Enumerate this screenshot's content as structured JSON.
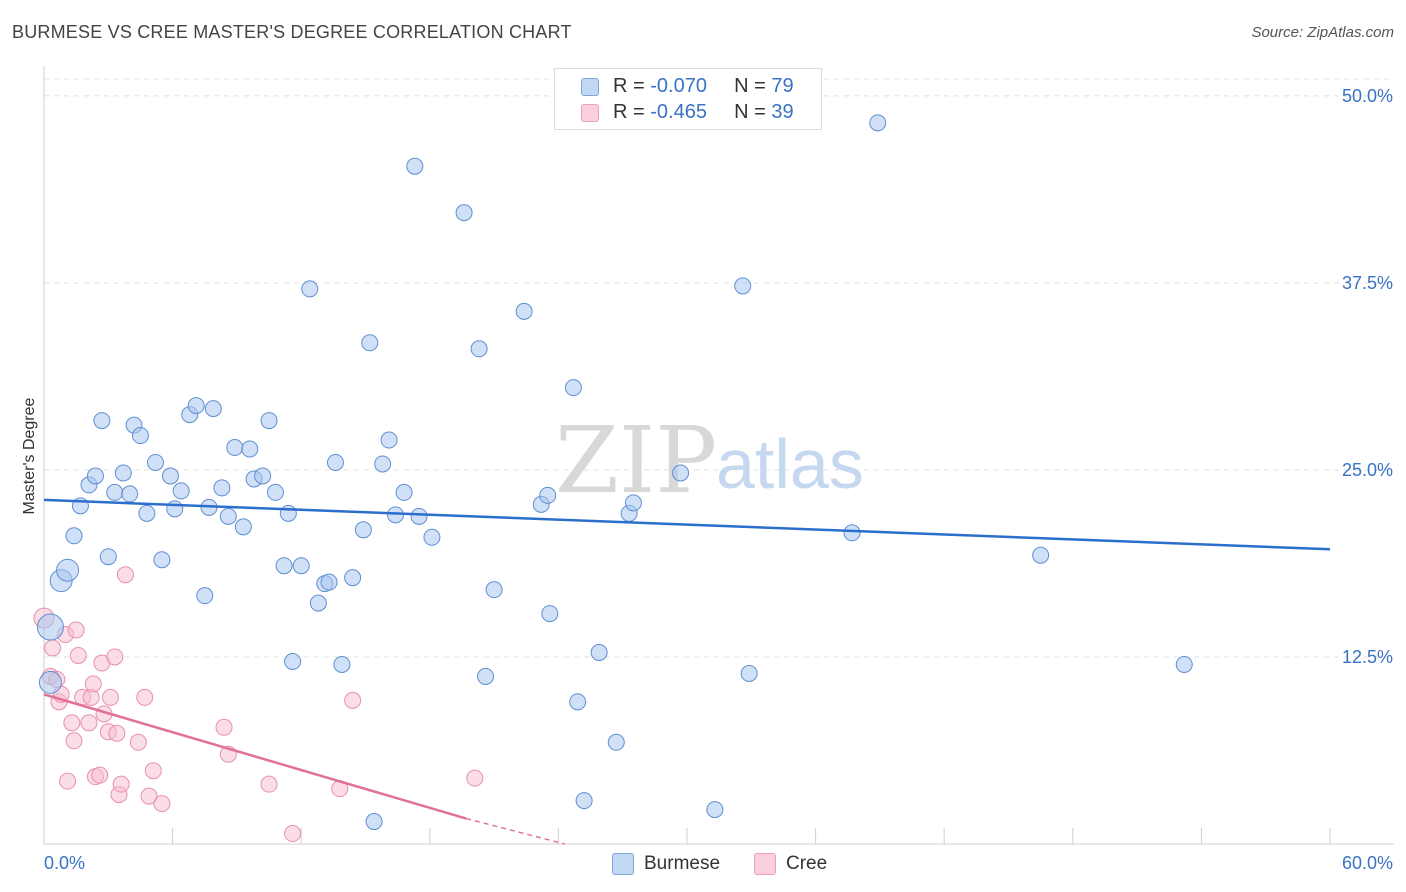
{
  "title": "BURMESE VS CREE MASTER'S DEGREE CORRELATION CHART",
  "source": "Source: ZipAtlas.com",
  "watermark": {
    "zip": "ZIP",
    "atlas": "atlas"
  },
  "legend": {
    "burmese": {
      "r_label": "R = ",
      "r_value": "-0.070",
      "n_label": "N = ",
      "n_value": "79"
    },
    "cree": {
      "r_label": "R = ",
      "r_value": "-0.465",
      "n_label": "N = ",
      "n_value": "39"
    }
  },
  "colors": {
    "burmese": "#a9c6ef",
    "burmese_line": "#2b6fcc",
    "cree": "#f7bccd",
    "cree_line": "#e07098",
    "tick": "#3a72c4"
  },
  "chart_data": {
    "type": "scatter",
    "ylabel": "Master's Degree",
    "xlim": [
      0,
      60
    ],
    "ylim": [
      0,
      52
    ],
    "x_tick_labels": [
      {
        "value": 0,
        "label": "0.0%"
      },
      {
        "value": 60,
        "label": "60.0%"
      }
    ],
    "y_ticks": [
      {
        "value": 12.5,
        "label": "12.5%"
      },
      {
        "value": 25,
        "label": "25.0%"
      },
      {
        "value": 37.5,
        "label": "37.5%"
      },
      {
        "value": 50,
        "label": "50.0%"
      }
    ],
    "grid": "horizontal dashed",
    "legend": "top-center and bottom-center",
    "series": [
      {
        "name": "Burmese",
        "trend": {
          "x": [
            0,
            60
          ],
          "y": [
            23.0,
            19.7
          ]
        },
        "points": [
          [
            0.3,
            14.5
          ],
          [
            0.8,
            17.6
          ],
          [
            1.1,
            18.3
          ],
          [
            1.4,
            20.6
          ],
          [
            1.7,
            22.6
          ],
          [
            2.1,
            24.0
          ],
          [
            2.4,
            24.6
          ],
          [
            2.7,
            28.3
          ],
          [
            3.0,
            19.2
          ],
          [
            3.3,
            23.5
          ],
          [
            3.7,
            24.8
          ],
          [
            4.0,
            23.4
          ],
          [
            4.2,
            28.0
          ],
          [
            4.5,
            27.3
          ],
          [
            4.8,
            22.1
          ],
          [
            5.2,
            25.5
          ],
          [
            5.5,
            19.0
          ],
          [
            5.9,
            24.6
          ],
          [
            6.1,
            22.4
          ],
          [
            6.4,
            23.6
          ],
          [
            6.8,
            28.7
          ],
          [
            7.1,
            29.3
          ],
          [
            7.5,
            16.6
          ],
          [
            7.7,
            22.5
          ],
          [
            7.9,
            29.1
          ],
          [
            8.3,
            23.8
          ],
          [
            8.6,
            21.9
          ],
          [
            8.9,
            26.5
          ],
          [
            9.3,
            21.2
          ],
          [
            9.6,
            26.4
          ],
          [
            9.8,
            24.4
          ],
          [
            10.2,
            24.6
          ],
          [
            10.5,
            28.3
          ],
          [
            10.8,
            23.5
          ],
          [
            11.2,
            18.6
          ],
          [
            11.4,
            22.1
          ],
          [
            11.6,
            12.2
          ],
          [
            12.0,
            18.6
          ],
          [
            12.4,
            37.1
          ],
          [
            12.8,
            16.1
          ],
          [
            13.1,
            17.4
          ],
          [
            13.3,
            17.5
          ],
          [
            13.6,
            25.5
          ],
          [
            13.9,
            12.0
          ],
          [
            14.4,
            17.8
          ],
          [
            14.9,
            21.0
          ],
          [
            15.2,
            33.5
          ],
          [
            15.8,
            25.4
          ],
          [
            16.1,
            27.0
          ],
          [
            16.4,
            22.0
          ],
          [
            16.8,
            23.5
          ],
          [
            17.3,
            45.3
          ],
          [
            17.5,
            21.9
          ],
          [
            18.1,
            20.5
          ],
          [
            19.6,
            42.2
          ],
          [
            20.3,
            33.1
          ],
          [
            20.6,
            11.2
          ],
          [
            21.0,
            17.0
          ],
          [
            22.4,
            35.6
          ],
          [
            23.2,
            22.7
          ],
          [
            23.5,
            23.3
          ],
          [
            23.6,
            15.4
          ],
          [
            24.7,
            30.5
          ],
          [
            24.9,
            9.5
          ],
          [
            25.2,
            2.9
          ],
          [
            25.9,
            12.8
          ],
          [
            26.7,
            6.8
          ],
          [
            27.3,
            22.1
          ],
          [
            27.5,
            22.8
          ],
          [
            29.7,
            24.8
          ],
          [
            31.3,
            2.3
          ],
          [
            32.6,
            37.3
          ],
          [
            32.9,
            11.4
          ],
          [
            37.7,
            20.8
          ],
          [
            38.9,
            48.2
          ],
          [
            46.5,
            19.3
          ],
          [
            53.2,
            12.0
          ],
          [
            15.4,
            1.5
          ],
          [
            0.3,
            10.8
          ]
        ]
      },
      {
        "name": "Cree",
        "trend": {
          "x": [
            0,
            19.7
          ],
          "y": [
            10.0,
            1.7
          ]
        },
        "trend_dashed": {
          "x": [
            19.7,
            24.3
          ],
          "y": [
            1.7,
            0
          ]
        },
        "points": [
          [
            0.0,
            15.1
          ],
          [
            0.3,
            11.2
          ],
          [
            0.4,
            13.1
          ],
          [
            0.6,
            11.0
          ],
          [
            0.7,
            9.5
          ],
          [
            0.8,
            10.0
          ],
          [
            1.0,
            14.0
          ],
          [
            1.1,
            4.2
          ],
          [
            1.3,
            8.1
          ],
          [
            1.4,
            6.9
          ],
          [
            1.5,
            14.3
          ],
          [
            1.6,
            12.6
          ],
          [
            1.8,
            9.8
          ],
          [
            2.1,
            8.1
          ],
          [
            2.2,
            9.8
          ],
          [
            2.3,
            10.7
          ],
          [
            2.4,
            4.5
          ],
          [
            2.6,
            4.6
          ],
          [
            2.7,
            12.1
          ],
          [
            2.8,
            8.7
          ],
          [
            3.0,
            7.5
          ],
          [
            3.1,
            9.8
          ],
          [
            3.3,
            12.5
          ],
          [
            3.4,
            7.4
          ],
          [
            3.5,
            3.3
          ],
          [
            3.6,
            4.0
          ],
          [
            3.8,
            18.0
          ],
          [
            4.4,
            6.8
          ],
          [
            4.7,
            9.8
          ],
          [
            4.9,
            3.2
          ],
          [
            5.1,
            4.9
          ],
          [
            5.5,
            2.7
          ],
          [
            8.4,
            7.8
          ],
          [
            8.6,
            6.0
          ],
          [
            10.5,
            4.0
          ],
          [
            11.6,
            0.7
          ],
          [
            13.8,
            3.7
          ],
          [
            14.4,
            9.6
          ],
          [
            20.1,
            4.4
          ]
        ]
      }
    ]
  }
}
